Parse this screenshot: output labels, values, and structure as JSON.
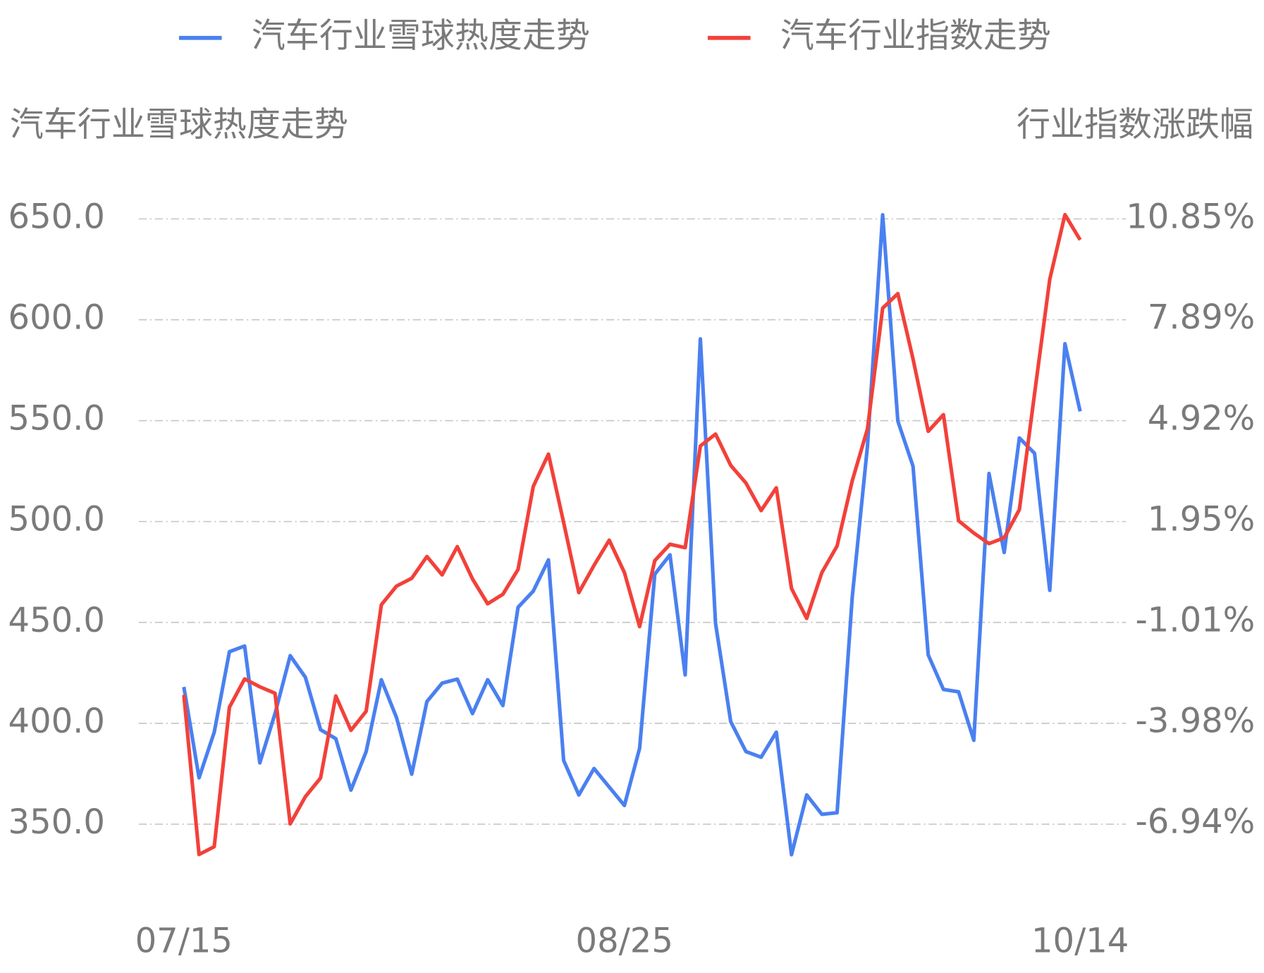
{
  "chart_data": {
    "type": "line",
    "ylabel": "汽车行业雪球热度走势",
    "y2label": "行业指数涨跌幅",
    "categories": [
      "07/15",
      null,
      null,
      null,
      null,
      null,
      null,
      null,
      null,
      null,
      null,
      null,
      null,
      null,
      null,
      null,
      null,
      null,
      null,
      null,
      null,
      null,
      null,
      null,
      null,
      null,
      null,
      null,
      null,
      "08/25",
      null,
      null,
      null,
      null,
      null,
      null,
      null,
      null,
      null,
      null,
      null,
      null,
      null,
      null,
      null,
      null,
      null,
      null,
      null,
      null,
      null,
      null,
      null,
      null,
      null,
      null,
      null,
      null,
      null,
      "10/14"
    ],
    "series": [
      {
        "name": "汽车行业雪球热度走势",
        "color": "#4a80f0",
        "axis": "y",
        "values": [
          418,
          373,
          395.6,
          435.5,
          438.3,
          380.4,
          404.8,
          433.5,
          422.8,
          396.8,
          392.4,
          366.9,
          386,
          421.6,
          402.8,
          374.8,
          410.8,
          419.9,
          421.9,
          404.8,
          421.6,
          408.8,
          457.5,
          465.5,
          481,
          381.6,
          364.5,
          377.6,
          368.4,
          359.3,
          387.6,
          473.9,
          483.5,
          424,
          590.5,
          449.5,
          400.8,
          386,
          383.2,
          395.6,
          334.9,
          364.5,
          354.9,
          355.7,
          462.7,
          537.4,
          652,
          549.8,
          527.4,
          433.9,
          416.8,
          415.6,
          391.6,
          523.8,
          484.7,
          541.4,
          533.8,
          465.9,
          588.1,
          554.6
        ]
      },
      {
        "name": "汽车行业指数走势",
        "color": "#f2413a",
        "axis": "y2",
        "values": [
          -3.15,
          -7.84,
          -7.61,
          -3.51,
          -2.68,
          -2.91,
          -3.1,
          -6.94,
          -6.14,
          -5.59,
          -3.18,
          -4.19,
          -3.63,
          -0.5,
          0.05,
          0.28,
          0.92,
          0.38,
          1.21,
          0.26,
          -0.47,
          -0.19,
          0.54,
          2.98,
          3.93,
          1.92,
          -0.14,
          0.66,
          1.4,
          0.45,
          -1.14,
          0.8,
          1.28,
          1.18,
          4.17,
          4.52,
          3.6,
          3.08,
          2.27,
          2.94,
          -0.02,
          -0.9,
          0.45,
          1.23,
          3.15,
          4.67,
          8.22,
          8.65,
          6.73,
          4.6,
          5.09,
          1.97,
          1.61,
          1.3,
          1.47,
          2.3,
          5.71,
          9.07,
          10.97,
          10.23
        ]
      }
    ],
    "ylim": [
      320,
      660
    ],
    "yticks": [
      {
        "value": 650,
        "label": "650.0"
      },
      {
        "value": 600,
        "label": "600.0"
      },
      {
        "value": 550,
        "label": "550.0"
      },
      {
        "value": 500,
        "label": "500.0"
      },
      {
        "value": 450,
        "label": "450.0"
      },
      {
        "value": 400,
        "label": "400.0"
      },
      {
        "value": 350,
        "label": "350.0"
      }
    ],
    "y2lim": [
      -8.73,
      11.44
    ],
    "y2ticks": [
      {
        "value": 10.85,
        "label": "10.85%"
      },
      {
        "value": 7.89,
        "label": "7.89%"
      },
      {
        "value": 4.92,
        "label": "4.92%"
      },
      {
        "value": 1.95,
        "label": "1.95%"
      },
      {
        "value": -1.01,
        "label": "-1.01%"
      },
      {
        "value": -3.98,
        "label": "-3.98%"
      },
      {
        "value": -6.94,
        "label": "-6.94%"
      }
    ],
    "grid": true,
    "legend": "top"
  }
}
